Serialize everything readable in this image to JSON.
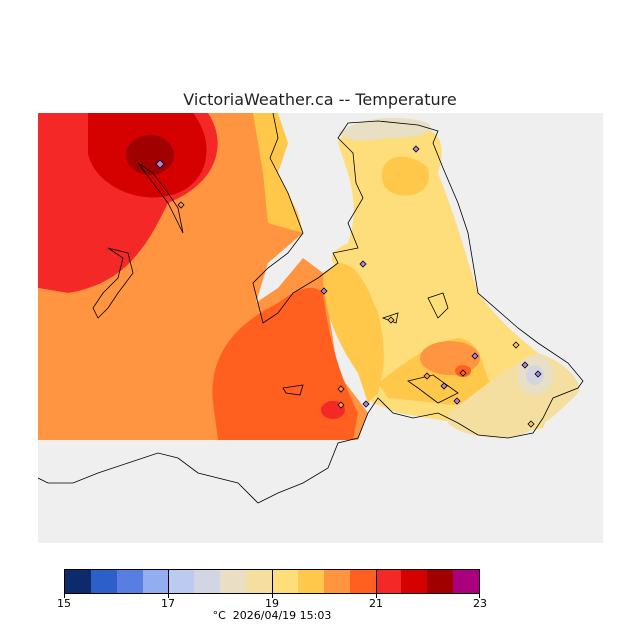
{
  "title": "VictoriaWeather.ca -- Temperature",
  "colorbar": {
    "colors": [
      "#0d2a6a",
      "#2d5fc8",
      "#577ee0",
      "#92adf0",
      "#bcc9f0",
      "#d1d6e2",
      "#e8dfc5",
      "#f4dea0",
      "#fede7a",
      "#ffc84a",
      "#ff9540",
      "#ff6020",
      "#f52828",
      "#d50000",
      "#a00000",
      "#ab007d"
    ],
    "ticks": [
      "15",
      "17",
      "19",
      "21",
      "23"
    ],
    "range": [
      15,
      23
    ],
    "unit": "°C"
  },
  "timestamp": "2026/04/19 15:03"
}
